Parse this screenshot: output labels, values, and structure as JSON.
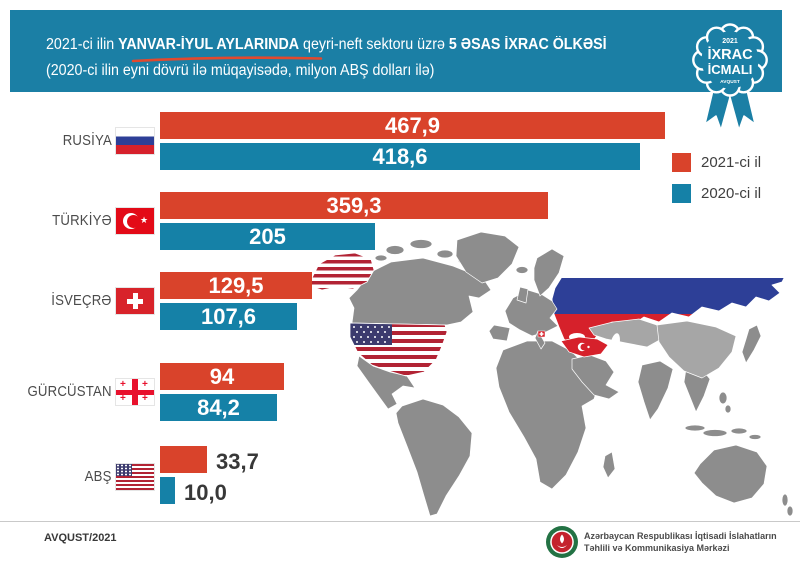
{
  "header": {
    "line1_prefix": "2021-ci ilin ",
    "line1_bold1": "YANVAR-İYUL AYLARINDA",
    "line1_mid": " qeyri-neft sektoru üzrə ",
    "line1_bold2": "5 ƏSAS İXRAC ÖLKƏSİ",
    "line2": "(2020-ci ilin eyni dövrü ilə müqayisədə, milyon ABŞ dolları ilə)"
  },
  "badge": {
    "year": "2021",
    "title_line1": "İXRAC",
    "title_line2": "İCMALI",
    "month": "AVQUST"
  },
  "legend": {
    "item1": {
      "label": "2021-ci il",
      "color": "#d9432b"
    },
    "item2": {
      "label": "2020-ci il",
      "color": "#1581a7"
    }
  },
  "chart_data": {
    "type": "bar",
    "orientation": "horizontal",
    "unit": "milyon ABŞ dolları",
    "title": "2021-ci ilin yanvar-iyul aylarında qeyri-neft sektoru üzrə 5 əsas ixrac ölkəsi",
    "categories": [
      "Rusiya",
      "Türkiyə",
      "İsveçrə",
      "Gürcüstan",
      "ABŞ"
    ],
    "series": [
      {
        "name": "2021-ci il",
        "color": "#d9432b",
        "values": [
          467.9,
          359.3,
          129.5,
          94,
          33.7
        ]
      },
      {
        "name": "2020-ci il",
        "color": "#1581a7",
        "values": [
          418.6,
          205,
          107.6,
          84.2,
          10.0
        ]
      }
    ],
    "rows": [
      {
        "label": "RUSİYA",
        "flag": "russia",
        "v2021": "467,9",
        "v2020": "418,6",
        "w2021": 505,
        "w2020": 480
      },
      {
        "label": "TÜRKİYƏ",
        "flag": "turkey",
        "v2021": "359,3",
        "v2020": "205",
        "w2021": 388,
        "w2020": 215
      },
      {
        "label": "İSVEÇRƏ",
        "flag": "switzerland",
        "v2021": "129,5",
        "v2020": "107,6",
        "w2021": 152,
        "w2020": 137
      },
      {
        "label": "GÜRCÜSTAN",
        "flag": "georgia",
        "v2021": "94",
        "v2020": "84,2",
        "w2021": 124,
        "w2020": 117
      },
      {
        "label": "ABŞ",
        "flag": "usa",
        "v2021": "33,7",
        "v2020": "10,0",
        "w2021": 47,
        "w2020": 15
      }
    ]
  },
  "footer": {
    "date": "AVQUST/2021",
    "org_line1": "Azərbaycan Respublikası İqtisadi İslahatların",
    "org_line2": "Təhlili və Kommunikasiya Mərkəzi"
  },
  "colors": {
    "header_bg": "#1b7fa5",
    "bar_red": "#d9432b",
    "bar_blue": "#1581a7",
    "map_gray": "#8d8d8d",
    "map_gray_light": "#a6a6a6",
    "russia_blue": "#2d3f97",
    "flag_red": "#d6212b"
  }
}
